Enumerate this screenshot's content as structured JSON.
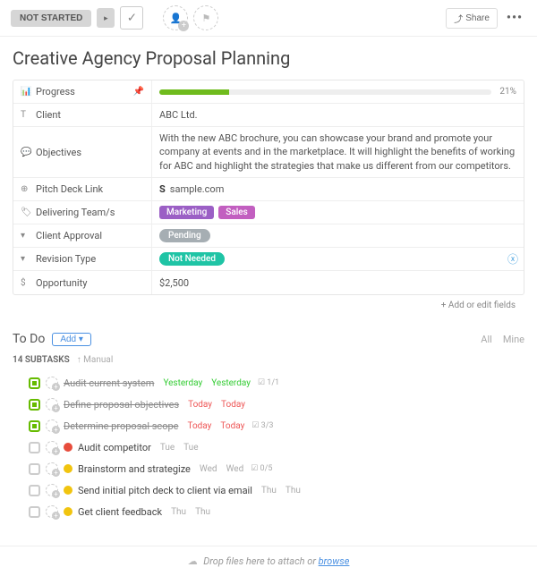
{
  "toolbar": {
    "status": "NOT STARTED",
    "share": "Share"
  },
  "title": "Creative Agency Proposal Planning",
  "fields": {
    "progress": {
      "label": "Progress",
      "pct": 21,
      "color": "#6fbb1d"
    },
    "client": {
      "label": "Client",
      "value": "ABC Ltd."
    },
    "objectives": {
      "label": "Objectives",
      "value": "With the new ABC brochure, you can showcase your brand and promote your company at events and in the marketplace. It will highlight the benefits of working for ABC and highlight the strategies that make us different from our competitors."
    },
    "pitch_deck": {
      "label": "Pitch Deck Link",
      "value": "sample.com"
    },
    "teams": {
      "label": "Delivering Team/s",
      "tags": [
        {
          "text": "Marketing",
          "color": "#9b5fc5"
        },
        {
          "text": "Sales",
          "color": "#c25fc0"
        }
      ]
    },
    "approval": {
      "label": "Client Approval",
      "pill": {
        "text": "Pending",
        "color": "#a6aeb3"
      }
    },
    "revision": {
      "label": "Revision Type",
      "pill": {
        "text": "Not Needed",
        "color": "#1fc4a5"
      }
    },
    "opportunity": {
      "label": "Opportunity",
      "value": "$2,500"
    }
  },
  "add_fields": "+ Add or edit fields",
  "todo": {
    "title": "To Do",
    "add": "Add",
    "tabs": {
      "all": "All",
      "mine": "Mine"
    },
    "count_label": "14 SUBTASKS",
    "sort": "Manual",
    "items": [
      {
        "name": "Audit current system",
        "done": true,
        "struck": true,
        "priority": null,
        "due1": "Yesterday",
        "due2": "Yesterday",
        "due_class": "green",
        "badge": "1/1"
      },
      {
        "name": "Define proposal objectives",
        "done": true,
        "struck": true,
        "priority": null,
        "due1": "Today",
        "due2": "Today",
        "due_class": "red",
        "badge": null
      },
      {
        "name": "Determine proposal scope",
        "done": true,
        "struck": true,
        "priority": null,
        "due1": "Today",
        "due2": "Today",
        "due_class": "red",
        "badge": "3/3"
      },
      {
        "name": "Audit competitor",
        "done": false,
        "struck": false,
        "priority": "#e74c3c",
        "due1": "Tue",
        "due2": "Tue",
        "due_class": "",
        "badge": null
      },
      {
        "name": "Brainstorm and strategize",
        "done": false,
        "struck": false,
        "priority": "#f1c40f",
        "due1": "Wed",
        "due2": "Wed",
        "due_class": "",
        "badge": "0/5"
      },
      {
        "name": "Send initial pitch deck to client via email",
        "done": false,
        "struck": false,
        "priority": "#f1c40f",
        "due1": "Thu",
        "due2": "Thu",
        "due_class": "",
        "badge": null
      },
      {
        "name": "Get client feedback",
        "done": false,
        "struck": false,
        "priority": "#f1c40f",
        "due1": "Thu",
        "due2": "Thu",
        "due_class": "",
        "badge": null
      }
    ]
  },
  "dropzone": {
    "text": "Drop files here to attach or ",
    "browse": "browse"
  }
}
